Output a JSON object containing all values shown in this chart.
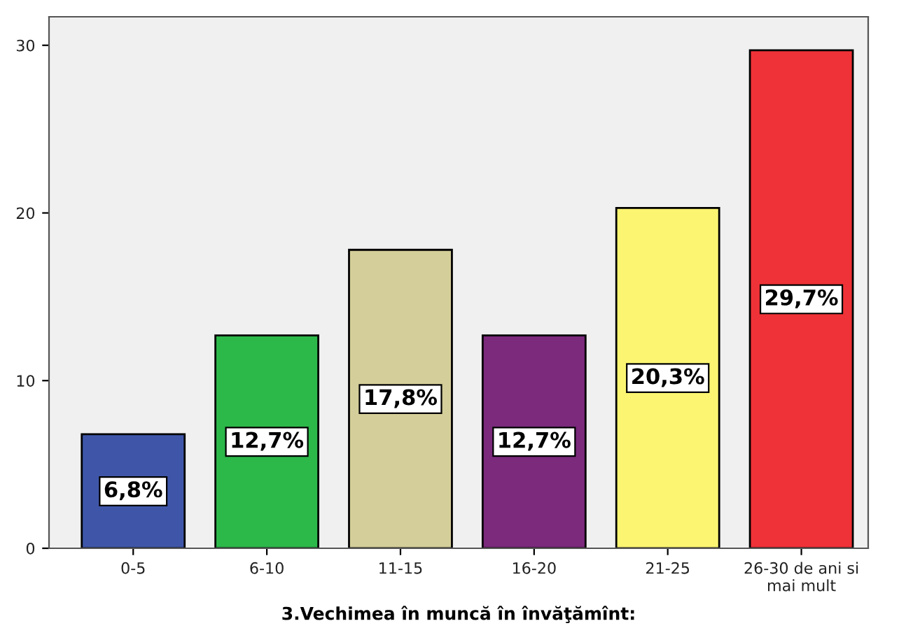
{
  "chart_data": {
    "type": "bar",
    "xlabel": "3.Vechimea în muncă în învăţămînt:",
    "categories": [
      "0-5",
      "6-10",
      "11-15",
      "16-20",
      "21-25",
      "26-30 de ani si\nmai mult"
    ],
    "values": [
      6.8,
      12.7,
      17.8,
      12.7,
      20.3,
      29.7
    ],
    "colors": [
      "#3f56a8",
      "#2db84a",
      "#d4ce9a",
      "#7b2a7c",
      "#fbf572",
      "#ef3237"
    ],
    "value_labels": [
      "6,8%",
      "12,7%",
      "17,8%",
      "12,7%",
      "20,3%",
      "29,7%"
    ],
    "ylim": [
      0,
      31.7
    ],
    "yticks": [
      0,
      10,
      20,
      30
    ],
    "grid": false,
    "legend": false
  }
}
